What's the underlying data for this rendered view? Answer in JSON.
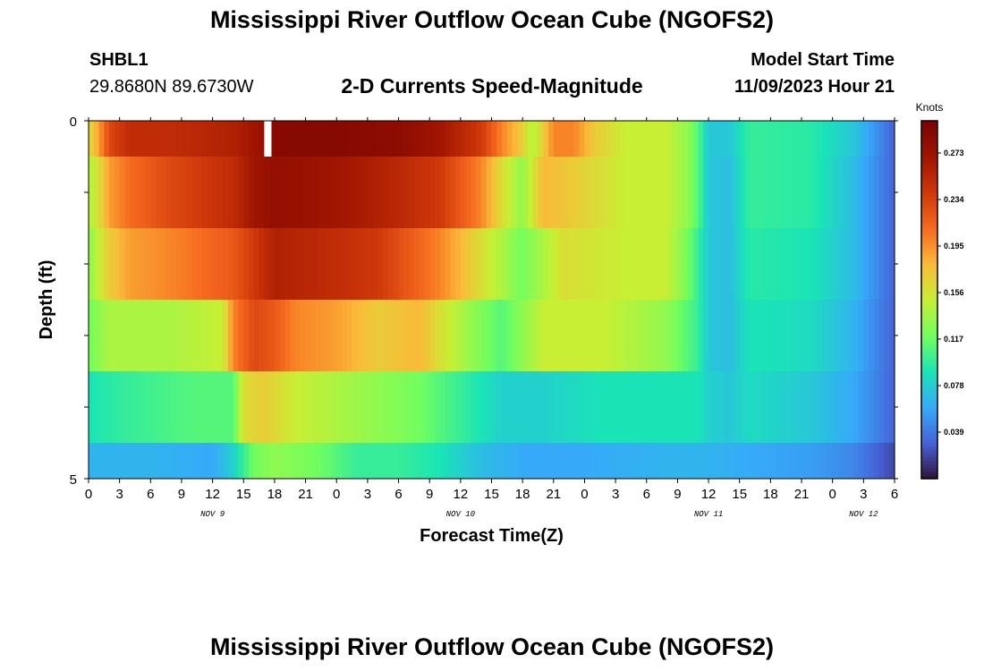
{
  "header": {
    "title": "Mississippi River Outflow Ocean Cube (NGOFS2)",
    "station_id": "SHBL1",
    "coordinates": "29.8680N  89.6730W",
    "subtitle": "2-D Currents Speed-Magnitude",
    "model_start_label": "Model Start Time",
    "model_start_value": "11/09/2023 Hour 21"
  },
  "footer": {
    "title": "Mississippi River Outflow Ocean Cube (NGOFS2)"
  },
  "chart_data": {
    "type": "heatmap",
    "title": "2-D Currents Speed-Magnitude",
    "xlabel": "Forecast Time(Z)",
    "ylabel": "Depth (ft)",
    "x_tick_labels": [
      "0",
      "3",
      "6",
      "9",
      "12",
      "15",
      "18",
      "21",
      "0",
      "3",
      "6",
      "9",
      "12",
      "15",
      "18",
      "21",
      "0",
      "3",
      "6",
      "9",
      "12",
      "15",
      "18",
      "21",
      "0",
      "3",
      "6"
    ],
    "x_range_hours": [
      0,
      78
    ],
    "day_labels": [
      {
        "label": "NOV 9",
        "hour": 12
      },
      {
        "label": "NOV 10",
        "hour": 36
      },
      {
        "label": "NOV 11",
        "hour": 60
      },
      {
        "label": "NOV 12",
        "hour": 75
      }
    ],
    "y_tick_labels": [
      "0",
      "5"
    ],
    "ylim": [
      0,
      5
    ],
    "colorbar": {
      "unit": "Knots",
      "range": [
        0.0,
        0.3
      ],
      "tick_labels": [
        "0.273",
        "0.234",
        "0.195",
        "0.156",
        "0.117",
        "0.078",
        "0.039"
      ],
      "tick_values": [
        0.273,
        0.234,
        0.195,
        0.156,
        0.117,
        0.078,
        0.039
      ]
    },
    "depth_layers": [
      {
        "depth_range_ft": [
          0,
          0.5
        ],
        "hour_knots": [
          [
            0,
            0.16
          ],
          [
            1,
            0.19
          ],
          [
            2,
            0.23
          ],
          [
            4,
            0.25
          ],
          [
            8,
            0.25
          ],
          [
            14,
            0.26
          ],
          [
            16,
            0.27
          ],
          [
            18,
            0.29
          ],
          [
            24,
            0.29
          ],
          [
            30,
            0.285
          ],
          [
            34,
            0.27
          ],
          [
            38,
            0.24
          ],
          [
            40,
            0.2
          ],
          [
            42,
            0.17
          ],
          [
            43,
            0.14
          ],
          [
            45,
            0.2
          ],
          [
            47,
            0.2
          ],
          [
            49,
            0.17
          ],
          [
            52,
            0.15
          ],
          [
            56,
            0.15
          ],
          [
            58,
            0.13
          ],
          [
            59,
            0.11
          ],
          [
            60,
            0.075
          ],
          [
            62,
            0.075
          ],
          [
            64,
            0.1
          ],
          [
            70,
            0.095
          ],
          [
            74,
            0.075
          ],
          [
            78,
            0.03
          ]
        ]
      },
      {
        "depth_range_ft": [
          0.5,
          1.5
        ],
        "hour_knots": [
          [
            0,
            0.14
          ],
          [
            1,
            0.16
          ],
          [
            2,
            0.19
          ],
          [
            4,
            0.21
          ],
          [
            8,
            0.23
          ],
          [
            14,
            0.25
          ],
          [
            16,
            0.27
          ],
          [
            18,
            0.28
          ],
          [
            24,
            0.27
          ],
          [
            28,
            0.26
          ],
          [
            34,
            0.24
          ],
          [
            38,
            0.2
          ],
          [
            40,
            0.16
          ],
          [
            42,
            0.13
          ],
          [
            44,
            0.18
          ],
          [
            47,
            0.17
          ],
          [
            52,
            0.15
          ],
          [
            56,
            0.15
          ],
          [
            58,
            0.13
          ],
          [
            59,
            0.11
          ],
          [
            60,
            0.075
          ],
          [
            62,
            0.07
          ],
          [
            64,
            0.1
          ],
          [
            70,
            0.095
          ],
          [
            74,
            0.07
          ],
          [
            78,
            0.03
          ]
        ]
      },
      {
        "depth_range_ft": [
          1.5,
          2.5
        ],
        "hour_knots": [
          [
            0,
            0.13
          ],
          [
            1,
            0.15
          ],
          [
            2,
            0.17
          ],
          [
            4,
            0.19
          ],
          [
            8,
            0.2
          ],
          [
            14,
            0.22
          ],
          [
            16,
            0.24
          ],
          [
            18,
            0.26
          ],
          [
            24,
            0.25
          ],
          [
            28,
            0.24
          ],
          [
            34,
            0.2
          ],
          [
            38,
            0.16
          ],
          [
            42,
            0.12
          ],
          [
            46,
            0.16
          ],
          [
            52,
            0.15
          ],
          [
            56,
            0.15
          ],
          [
            58,
            0.12
          ],
          [
            59,
            0.1
          ],
          [
            60,
            0.075
          ],
          [
            62,
            0.07
          ],
          [
            64,
            0.095
          ],
          [
            70,
            0.09
          ],
          [
            74,
            0.07
          ],
          [
            78,
            0.03
          ]
        ]
      },
      {
        "depth_range_ft": [
          2.5,
          3.5
        ],
        "hour_knots": [
          [
            0,
            0.12
          ],
          [
            2,
            0.14
          ],
          [
            8,
            0.14
          ],
          [
            13,
            0.15
          ],
          [
            14,
            0.2
          ],
          [
            16,
            0.23
          ],
          [
            18,
            0.22
          ],
          [
            20,
            0.2
          ],
          [
            24,
            0.19
          ],
          [
            28,
            0.17
          ],
          [
            32,
            0.18
          ],
          [
            36,
            0.14
          ],
          [
            40,
            0.11
          ],
          [
            44,
            0.15
          ],
          [
            50,
            0.15
          ],
          [
            56,
            0.13
          ],
          [
            59,
            0.1
          ],
          [
            60,
            0.075
          ],
          [
            62,
            0.07
          ],
          [
            64,
            0.09
          ],
          [
            70,
            0.085
          ],
          [
            74,
            0.065
          ],
          [
            78,
            0.03
          ]
        ]
      },
      {
        "depth_range_ft": [
          3.5,
          4.5
        ],
        "hour_knots": [
          [
            0,
            0.09
          ],
          [
            4,
            0.1
          ],
          [
            10,
            0.11
          ],
          [
            14,
            0.11
          ],
          [
            15,
            0.16
          ],
          [
            17,
            0.17
          ],
          [
            20,
            0.15
          ],
          [
            24,
            0.14
          ],
          [
            28,
            0.13
          ],
          [
            32,
            0.12
          ],
          [
            36,
            0.1
          ],
          [
            40,
            0.08
          ],
          [
            44,
            0.08
          ],
          [
            50,
            0.09
          ],
          [
            56,
            0.09
          ],
          [
            59,
            0.09
          ],
          [
            60,
            0.08
          ],
          [
            62,
            0.075
          ],
          [
            64,
            0.085
          ],
          [
            70,
            0.075
          ],
          [
            74,
            0.06
          ],
          [
            78,
            0.03
          ]
        ]
      },
      {
        "depth_range_ft": [
          4.5,
          5
        ],
        "hour_knots": [
          [
            0,
            0.065
          ],
          [
            6,
            0.065
          ],
          [
            12,
            0.06
          ],
          [
            14,
            0.08
          ],
          [
            16,
            0.12
          ],
          [
            18,
            0.13
          ],
          [
            22,
            0.12
          ],
          [
            26,
            0.1
          ],
          [
            30,
            0.1
          ],
          [
            34,
            0.09
          ],
          [
            38,
            0.07
          ],
          [
            42,
            0.06
          ],
          [
            48,
            0.06
          ],
          [
            56,
            0.065
          ],
          [
            60,
            0.065
          ],
          [
            64,
            0.06
          ],
          [
            70,
            0.055
          ],
          [
            74,
            0.045
          ],
          [
            78,
            0.02
          ]
        ]
      }
    ],
    "data_gap": {
      "hour_range": [
        17,
        17.7
      ],
      "depth_range_ft": [
        0,
        0.5
      ]
    }
  }
}
